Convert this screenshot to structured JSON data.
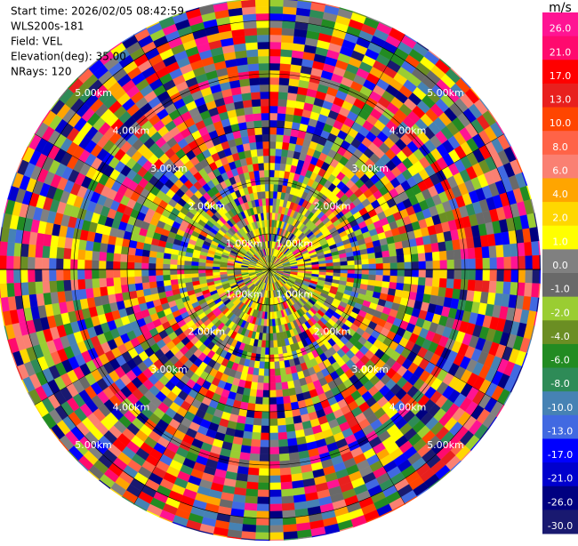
{
  "header": {
    "lines": [
      "Start time: 2026/02/05 08:42:59",
      "WLS200s-181",
      "Field: VEL",
      "Elevation(deg): 35.00",
      "NRays: 120"
    ]
  },
  "ring_labels": [
    "1.00km",
    "2.00km",
    "3.00km",
    "4.00km",
    "5.00km"
  ],
  "colorbar": {
    "title": "m/s",
    "colors": [
      "#ff1493",
      "#ff0a6e",
      "#ff0000",
      "#e8201e",
      "#ff4500",
      "#ff6347",
      "#fa8072",
      "#ffa500",
      "#ffd700",
      "#ffff00",
      "#808080",
      "#696969",
      "#9acd32",
      "#6b8e23",
      "#228b22",
      "#2e8b57",
      "#4682b4",
      "#4169e1",
      "#0000ff",
      "#0000cd",
      "#000080",
      "#191970"
    ],
    "ticks": [
      {
        "value": 26,
        "label": "26.0"
      },
      {
        "value": 21,
        "label": "21.0"
      },
      {
        "value": 17,
        "label": "17.0"
      },
      {
        "value": 13,
        "label": "13.0"
      },
      {
        "value": 10,
        "label": "10.0"
      },
      {
        "value": 8,
        "label": "8.0"
      },
      {
        "value": 6,
        "label": "6.0"
      },
      {
        "value": 4,
        "label": "4.0"
      },
      {
        "value": 2,
        "label": "2.0"
      },
      {
        "value": 1,
        "label": "1.0"
      },
      {
        "value": 0,
        "label": "0.0"
      },
      {
        "value": -1,
        "label": "-1.0"
      },
      {
        "value": -2,
        "label": "-2.0"
      },
      {
        "value": -4,
        "label": "-4.0"
      },
      {
        "value": -6,
        "label": "-6.0"
      },
      {
        "value": -8,
        "label": "-8.0"
      },
      {
        "value": -10,
        "label": "-10.0"
      },
      {
        "value": -13,
        "label": "-13.0"
      },
      {
        "value": -17,
        "label": "-17.0"
      },
      {
        "value": -21,
        "label": "-21.0"
      },
      {
        "value": -26,
        "label": "-26.0"
      },
      {
        "value": -30,
        "label": "-30.0"
      }
    ]
  }
}
